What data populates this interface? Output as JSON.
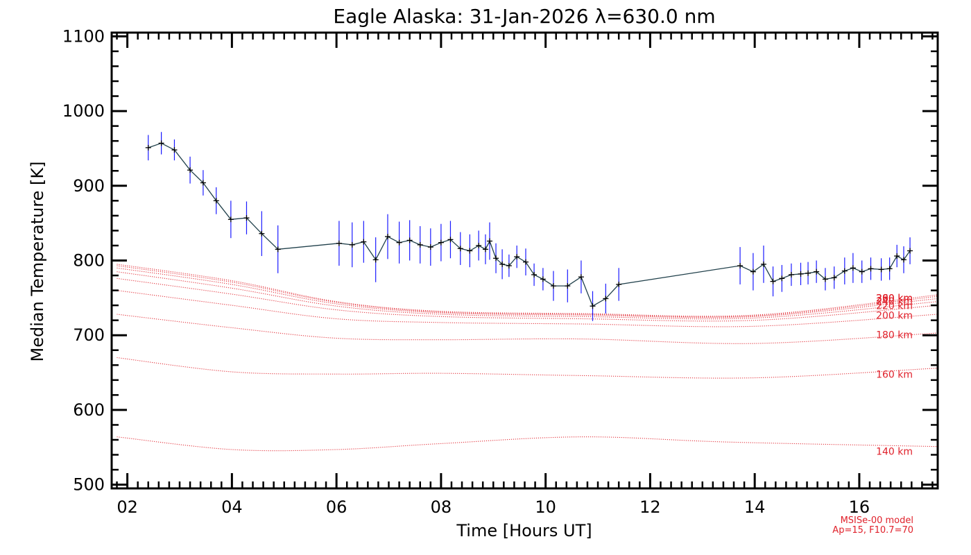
{
  "chart_data": {
    "type": "line",
    "title": "Eagle Alaska: 31-Jan-2026 λ=630.0 nm",
    "xlabel": "Time [Hours UT]",
    "ylabel": "Median Temperature [K]",
    "xlim": [
      1.7,
      17.5
    ],
    "ylim": [
      495,
      1105
    ],
    "x_ticks": [
      2,
      4,
      6,
      8,
      10,
      12,
      14,
      16
    ],
    "x_tick_labels": [
      "02",
      "04",
      "06",
      "08",
      "10",
      "12",
      "14",
      "16"
    ],
    "y_ticks": [
      500,
      600,
      700,
      800,
      900,
      1000,
      1100
    ],
    "y_tick_labels": [
      "500",
      "600",
      "700",
      "800",
      "900",
      "1000",
      "1100"
    ],
    "colors": {
      "measured": "#1f3f4a",
      "error": "#1a1aff",
      "model": "#e0202a",
      "axis": "#000000"
    },
    "measured": {
      "name": "Median Temperature",
      "x": [
        2.4,
        2.65,
        2.9,
        3.2,
        3.45,
        3.7,
        3.98,
        4.28,
        4.57,
        4.88,
        6.05,
        6.3,
        6.52,
        6.75,
        6.98,
        7.2,
        7.4,
        7.6,
        7.8,
        8.0,
        8.18,
        8.37,
        8.55,
        8.72,
        8.85,
        8.93,
        9.05,
        9.17,
        9.3,
        9.45,
        9.62,
        9.78,
        9.95,
        10.15,
        10.42,
        10.68,
        10.9,
        11.15,
        11.4,
        13.72,
        13.97,
        14.17,
        14.35,
        14.52,
        14.7,
        14.88,
        15.02,
        15.18,
        15.35,
        15.52,
        15.72,
        15.88,
        16.05,
        16.22,
        16.42,
        16.58,
        16.72,
        16.85,
        16.97
      ],
      "y": [
        951,
        957,
        948,
        921,
        904,
        880,
        855,
        857,
        836,
        815,
        823,
        821,
        825,
        801,
        832,
        824,
        827,
        821,
        818,
        824,
        828,
        816,
        813,
        820,
        815,
        826,
        803,
        795,
        793,
        805,
        798,
        781,
        775,
        766,
        766,
        778,
        739,
        749,
        768,
        793,
        785,
        795,
        772,
        776,
        781,
        782,
        783,
        785,
        775,
        777,
        786,
        790,
        785,
        789,
        788,
        789,
        806,
        801,
        813
      ],
      "err": [
        17,
        15,
        14,
        18,
        17,
        18,
        25,
        22,
        30,
        32,
        30,
        30,
        28,
        30,
        30,
        28,
        27,
        25,
        25,
        25,
        25,
        22,
        22,
        20,
        20,
        25,
        20,
        20,
        15,
        15,
        18,
        15,
        15,
        20,
        22,
        22,
        20,
        20,
        22,
        25,
        25,
        25,
        20,
        18,
        15,
        15,
        15,
        15,
        15,
        15,
        18,
        20,
        15,
        15,
        15,
        15,
        15,
        18,
        18
      ]
    },
    "model_series": [
      {
        "name": "140 km",
        "x": [
          1.8,
          4,
          6,
          8,
          10.7,
          13.5,
          17.5
        ],
        "y": [
          564,
          547,
          547,
          555,
          564,
          557,
          551
        ]
      },
      {
        "name": "160 km",
        "x": [
          1.8,
          4,
          6,
          8,
          10.7,
          14,
          17.5
        ],
        "y": [
          670,
          651,
          648,
          649,
          646,
          643,
          656
        ]
      },
      {
        "name": "180 km",
        "x": [
          1.8,
          4,
          6,
          8,
          10.7,
          14,
          17.5
        ],
        "y": [
          728,
          710,
          696,
          694,
          695,
          689,
          703
        ]
      },
      {
        "name": "200 km",
        "x": [
          1.8,
          4,
          6,
          8,
          10.7,
          14,
          17.5
        ],
        "y": [
          760,
          740,
          722,
          717,
          715,
          712,
          728
        ]
      },
      {
        "name": "220 km",
        "x": [
          1.8,
          4,
          6,
          8,
          10.7,
          14,
          17.5
        ],
        "y": [
          776,
          755,
          734,
          725,
          722,
          720,
          740
        ]
      },
      {
        "name": "240 km",
        "x": [
          1.8,
          4,
          6,
          8,
          10.7,
          14,
          17.5
        ],
        "y": [
          785,
          763,
          739,
          728,
          725,
          723,
          745
        ]
      },
      {
        "name": "260 km",
        "x": [
          1.8,
          4,
          6,
          8,
          10.7,
          14,
          17.5
        ],
        "y": [
          790,
          768,
          742,
          730,
          727,
          725,
          749
        ]
      },
      {
        "name": "280 km",
        "x": [
          1.8,
          4,
          6,
          8,
          10.7,
          14,
          17.5
        ],
        "y": [
          793,
          771,
          744,
          731,
          728,
          726,
          752
        ]
      },
      {
        "name": "300 km",
        "x": [
          1.8,
          4,
          6,
          8,
          10.7,
          14,
          17.5
        ],
        "y": [
          795,
          773,
          745,
          732,
          729,
          727,
          754
        ]
      }
    ],
    "model_labels": [
      {
        "text": "140 km",
        "y": 540
      },
      {
        "text": "160 km",
        "y": 643
      },
      {
        "text": "180 km",
        "y": 696
      },
      {
        "text": "200 km",
        "y": 722
      },
      {
        "text": "220 km",
        "y": 735
      },
      {
        "text": "240 km",
        "y": 741
      },
      {
        "text": "260 km",
        "y": 745
      },
      {
        "text": "280 km",
        "y": 745
      },
      {
        "text": "300 km",
        "y": 745
      }
    ],
    "model_note_lines": [
      "MSISe-00 model",
      "Ap=15, F10.7=70"
    ]
  }
}
